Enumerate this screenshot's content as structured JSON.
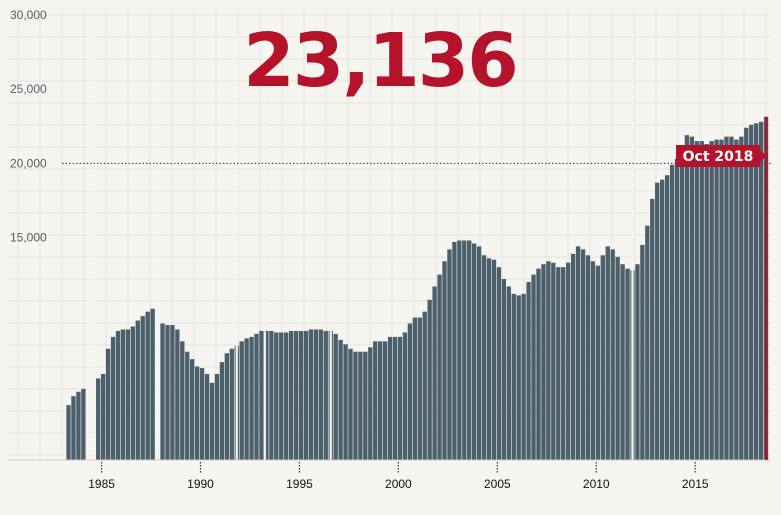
{
  "headline": "23,136",
  "colors": {
    "bar": "#4c5f6c",
    "accent": "#b5122b",
    "grid": "#e6e3dc",
    "background": "#f7f5f0",
    "axis_label": "#4d5f6d",
    "reference_line": "#333333"
  },
  "chart_data": {
    "type": "bar",
    "title": "",
    "xlabel": "",
    "ylabel": "",
    "xlim": [
      1983,
      2018.83
    ],
    "ylim": [
      0,
      30000
    ],
    "y_ticks": [
      20000,
      25000,
      30000
    ],
    "y_tick_labels": [
      "15,000",
      "20,000",
      "25,000",
      "30,000"
    ],
    "y_tick_values": [
      15000,
      20000,
      25000,
      30000
    ],
    "x_tick_values": [
      1985,
      1990,
      1995,
      2000,
      2005,
      2010,
      2015
    ],
    "x_tick_labels": [
      "1985",
      "1990",
      "1995",
      "2000",
      "2005",
      "2010",
      "2015"
    ],
    "reference_line": 20000,
    "grid": true,
    "series": [
      {
        "values_x": [
          1983.33,
          1983.58,
          1983.83,
          1984.08,
          1984.33,
          1984.58,
          1984.83,
          1985.08,
          1985.33,
          1985.58,
          1985.83,
          1986.08,
          1986.33,
          1986.58,
          1986.83,
          1987.08,
          1987.33,
          1987.58,
          1987.83,
          1988.08,
          1988.33,
          1988.58,
          1988.83,
          1989.08,
          1989.33,
          1989.58,
          1989.83,
          1990.08,
          1990.33,
          1990.58,
          1990.83,
          1991.08,
          1991.33,
          1991.58,
          1991.83,
          1992.08,
          1992.33,
          1992.58,
          1992.83,
          1993.08,
          1993.33,
          1993.58,
          1993.83,
          1994.08,
          1994.33,
          1994.58,
          1994.83,
          1995.08,
          1995.33,
          1995.58,
          1995.83,
          1996.08,
          1996.33,
          1996.58,
          1996.83,
          1997.08,
          1997.33,
          1997.58,
          1997.83,
          1998.08,
          1998.33,
          1998.58,
          1998.83,
          1999.08,
          1999.33,
          1999.58,
          1999.83,
          2000.08,
          2000.33,
          2000.58,
          2000.83,
          2001.08,
          2001.33,
          2001.58,
          2001.83,
          2002.08,
          2002.33,
          2002.58,
          2002.83,
          2003.08,
          2003.33,
          2003.58,
          2003.83,
          2004.08,
          2004.33,
          2004.58,
          2004.83,
          2005.08,
          2005.33,
          2005.58,
          2005.83,
          2006.08,
          2006.33,
          2006.58,
          2006.83,
          2007.08,
          2007.33,
          2007.58,
          2007.83,
          2008.08,
          2008.33,
          2008.58,
          2008.83,
          2009.08,
          2009.33,
          2009.58,
          2009.83,
          2010.08,
          2010.33,
          2010.58,
          2010.83,
          2011.08,
          2011.33,
          2011.58,
          2011.83,
          2012.08,
          2012.33,
          2012.58,
          2012.83,
          2013.08,
          2013.33,
          2013.58,
          2013.83,
          2014.08,
          2014.33,
          2014.58,
          2014.83,
          2015.08,
          2015.33,
          2015.58,
          2015.83,
          2016.08,
          2016.33,
          2016.58,
          2016.83,
          2017.08,
          2017.33,
          2017.58,
          2017.83,
          2018.08,
          2018.33,
          2018.58
        ],
        "values": [
          3700,
          4300,
          4600,
          4800,
          0,
          0,
          5500,
          5800,
          7500,
          8300,
          8700,
          8800,
          8800,
          9000,
          9400,
          9700,
          10000,
          10200,
          0,
          9200,
          9100,
          9100,
          8800,
          8000,
          7300,
          6800,
          6300,
          6200,
          5800,
          5200,
          5800,
          6600,
          7200,
          7500,
          7700,
          8000,
          8200,
          8300,
          8500,
          8700,
          8700,
          8700,
          8600,
          8600,
          8600,
          8700,
          8700,
          8700,
          8700,
          8800,
          8800,
          8800,
          8700,
          8700,
          8500,
          8100,
          7800,
          7500,
          7300,
          7300,
          7300,
          7600,
          8000,
          8000,
          8000,
          8300,
          8300,
          8300,
          8600,
          9200,
          9600,
          9600,
          10000,
          10800,
          11700,
          12500,
          13400,
          14200,
          14700,
          14800,
          14800,
          14800,
          14600,
          14400,
          13800,
          13600,
          13500,
          13000,
          12200,
          11700,
          11200,
          11100,
          11200,
          12000,
          12500,
          12900,
          13200,
          13400,
          13300,
          13000,
          13000,
          13300,
          13900,
          14400,
          14200,
          13800,
          13400,
          13100,
          13800,
          14400,
          14200,
          13700,
          13200,
          12900,
          12800,
          13200,
          14500,
          15800,
          17600,
          18700,
          18900,
          19200,
          19900,
          20300,
          20800,
          21900,
          21800,
          21500,
          21500,
          21300,
          21500,
          21600,
          21600,
          21800,
          21800,
          21600,
          21800,
          22400,
          22600,
          22700,
          22800,
          23136
        ],
        "gaps": [
          1984.33,
          1984.58,
          1987.83,
          1991.83,
          1993.25,
          1996.58,
          2011.83
        ]
      }
    ],
    "annotations": [
      "Oct 2018"
    ]
  },
  "callout": {
    "label": "Oct 2018"
  }
}
